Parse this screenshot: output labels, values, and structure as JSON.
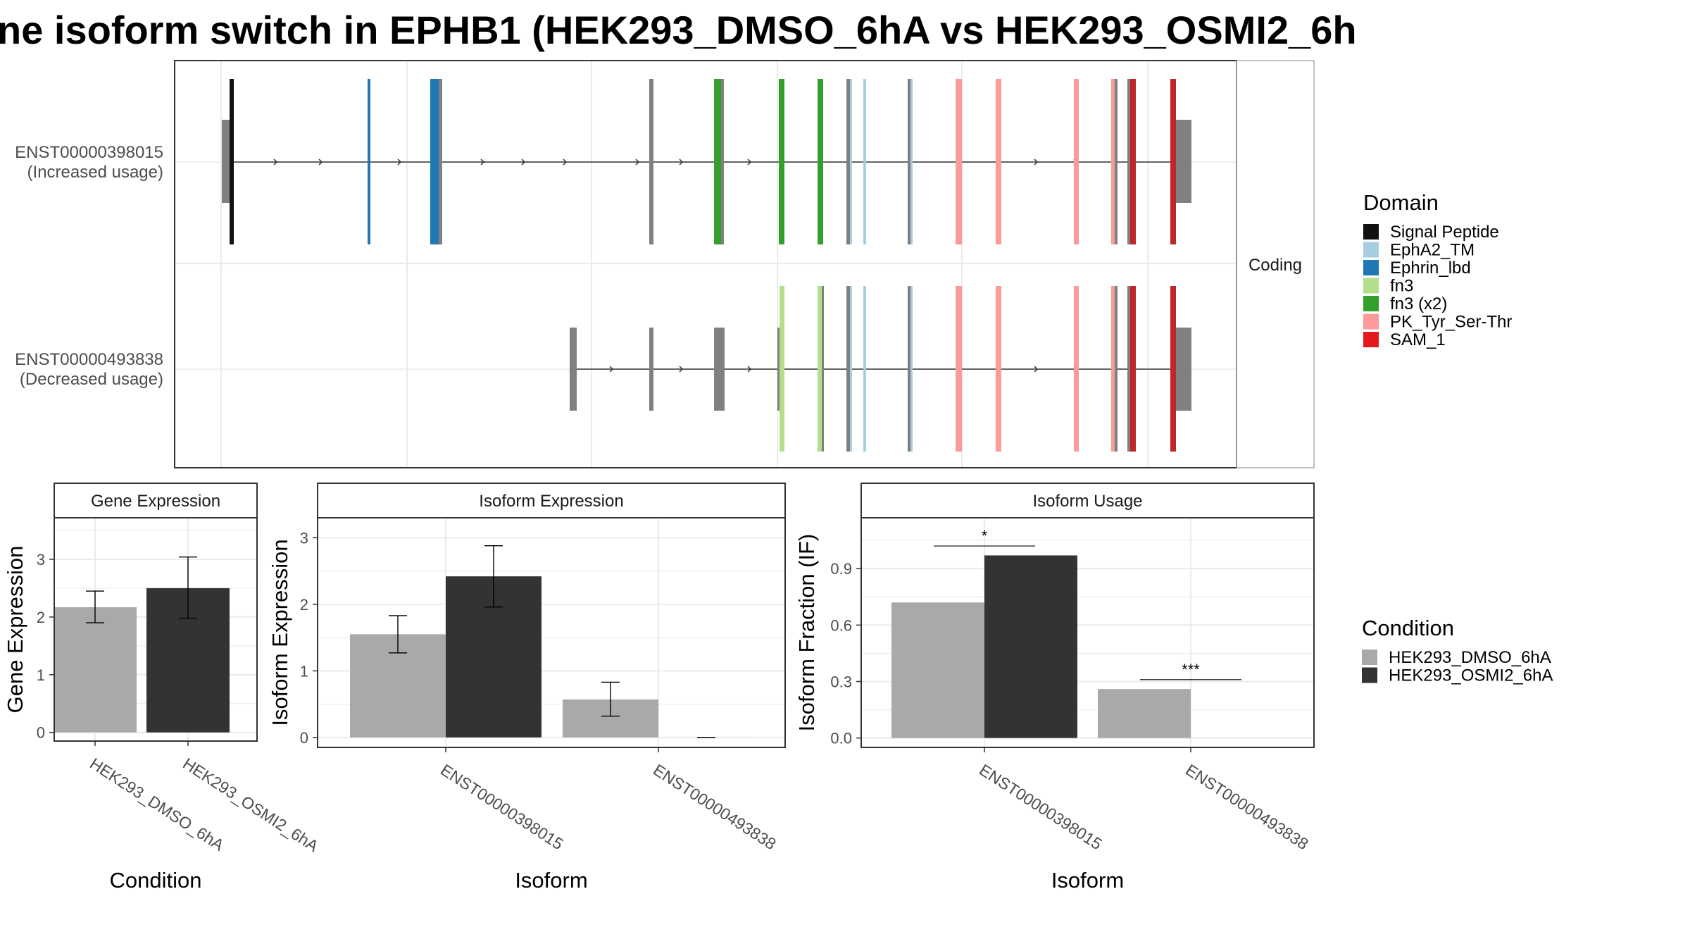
{
  "title": "ne isoform switch in EPHB1 (HEK293_DMSO_6hA vs HEK293_OSMI2_6h",
  "colors": {
    "utr": "#808080",
    "cond_dmso": "#A9A9A9",
    "cond_osmi": "#333333",
    "panel_border": "#333333",
    "grid": "#EBEBEB",
    "strip_bg": "#FFFFFF"
  },
  "structure_panel": {
    "strip_label": "Coding",
    "isoforms": [
      {
        "id": "ENST00000398015",
        "label": "ENST00000398015",
        "sublabel": "(Increased usage)"
      },
      {
        "id": "ENST00000493838",
        "label": "ENST00000493838",
        "sublabel": "(Decreased usage)"
      }
    ]
  },
  "domain_legend": {
    "title": "Domain",
    "items": [
      {
        "name": "Signal Peptide",
        "color": "#111111"
      },
      {
        "name": "EphA2_TM",
        "color": "#A6CEE3"
      },
      {
        "name": "Ephrin_lbd",
        "color": "#1F78B4"
      },
      {
        "name": "fn3",
        "color": "#B2DF8A"
      },
      {
        "name": "fn3 (x2)",
        "color": "#33A02C"
      },
      {
        "name": "PK_Tyr_Ser-Thr",
        "color": "#FB9A99"
      },
      {
        "name": "SAM_1",
        "color": "#E31A1C"
      }
    ]
  },
  "condition_legend": {
    "title": "Condition",
    "items": [
      {
        "name": "HEK293_DMSO_6hA",
        "color": "#A9A9A9"
      },
      {
        "name": "HEK293_OSMI2_6hA",
        "color": "#333333"
      }
    ]
  },
  "chart_data": [
    {
      "type": "bar",
      "panel": "Gene Expression",
      "strip_label": "Gene Expression",
      "xlabel": "Condition",
      "ylabel": "Gene Expression",
      "categories": [
        "HEK293_DMSO_6hA",
        "HEK293_OSMI2_6hA"
      ],
      "values": [
        2.17,
        2.5
      ],
      "error_low": [
        1.9,
        1.98
      ],
      "error_high": [
        2.45,
        3.04
      ],
      "ylim": [
        -0.15,
        3.72
      ],
      "yticks": [
        0,
        1,
        2,
        3
      ]
    },
    {
      "type": "bar",
      "panel": "Isoform Expression",
      "strip_label": "Isoform Expression",
      "xlabel": "Isoform",
      "ylabel": "Isoform Expression",
      "categories": [
        "ENST00000398015",
        "ENST00000493838"
      ],
      "series": [
        {
          "name": "HEK293_DMSO_6hA",
          "values": [
            1.55,
            0.57
          ],
          "error_low": [
            1.27,
            0.32
          ],
          "error_high": [
            1.83,
            0.83
          ]
        },
        {
          "name": "HEK293_OSMI2_6hA",
          "values": [
            2.42,
            0.0
          ],
          "error_low": [
            1.96,
            0.0
          ],
          "error_high": [
            2.88,
            0.0
          ]
        }
      ],
      "ylim": [
        -0.15,
        3.3
      ],
      "yticks": [
        0,
        1,
        2,
        3
      ]
    },
    {
      "type": "bar",
      "panel": "Isoform Usage",
      "strip_label": "Isoform Usage",
      "xlabel": "Isoform",
      "ylabel": "Isoform Fraction (IF)",
      "categories": [
        "ENST00000398015",
        "ENST00000493838"
      ],
      "series": [
        {
          "name": "HEK293_DMSO_6hA",
          "values": [
            0.72,
            0.26
          ]
        },
        {
          "name": "HEK293_OSMI2_6hA",
          "values": [
            0.97,
            0.0
          ]
        }
      ],
      "significance": [
        {
          "category": "ENST00000398015",
          "label": "*",
          "y": 1.02
        },
        {
          "category": "ENST00000493838",
          "label": "***",
          "y": 0.31
        }
      ],
      "ylim": [
        -0.05,
        1.17
      ],
      "yticks": [
        0.0,
        0.3,
        0.6,
        0.9
      ]
    }
  ]
}
